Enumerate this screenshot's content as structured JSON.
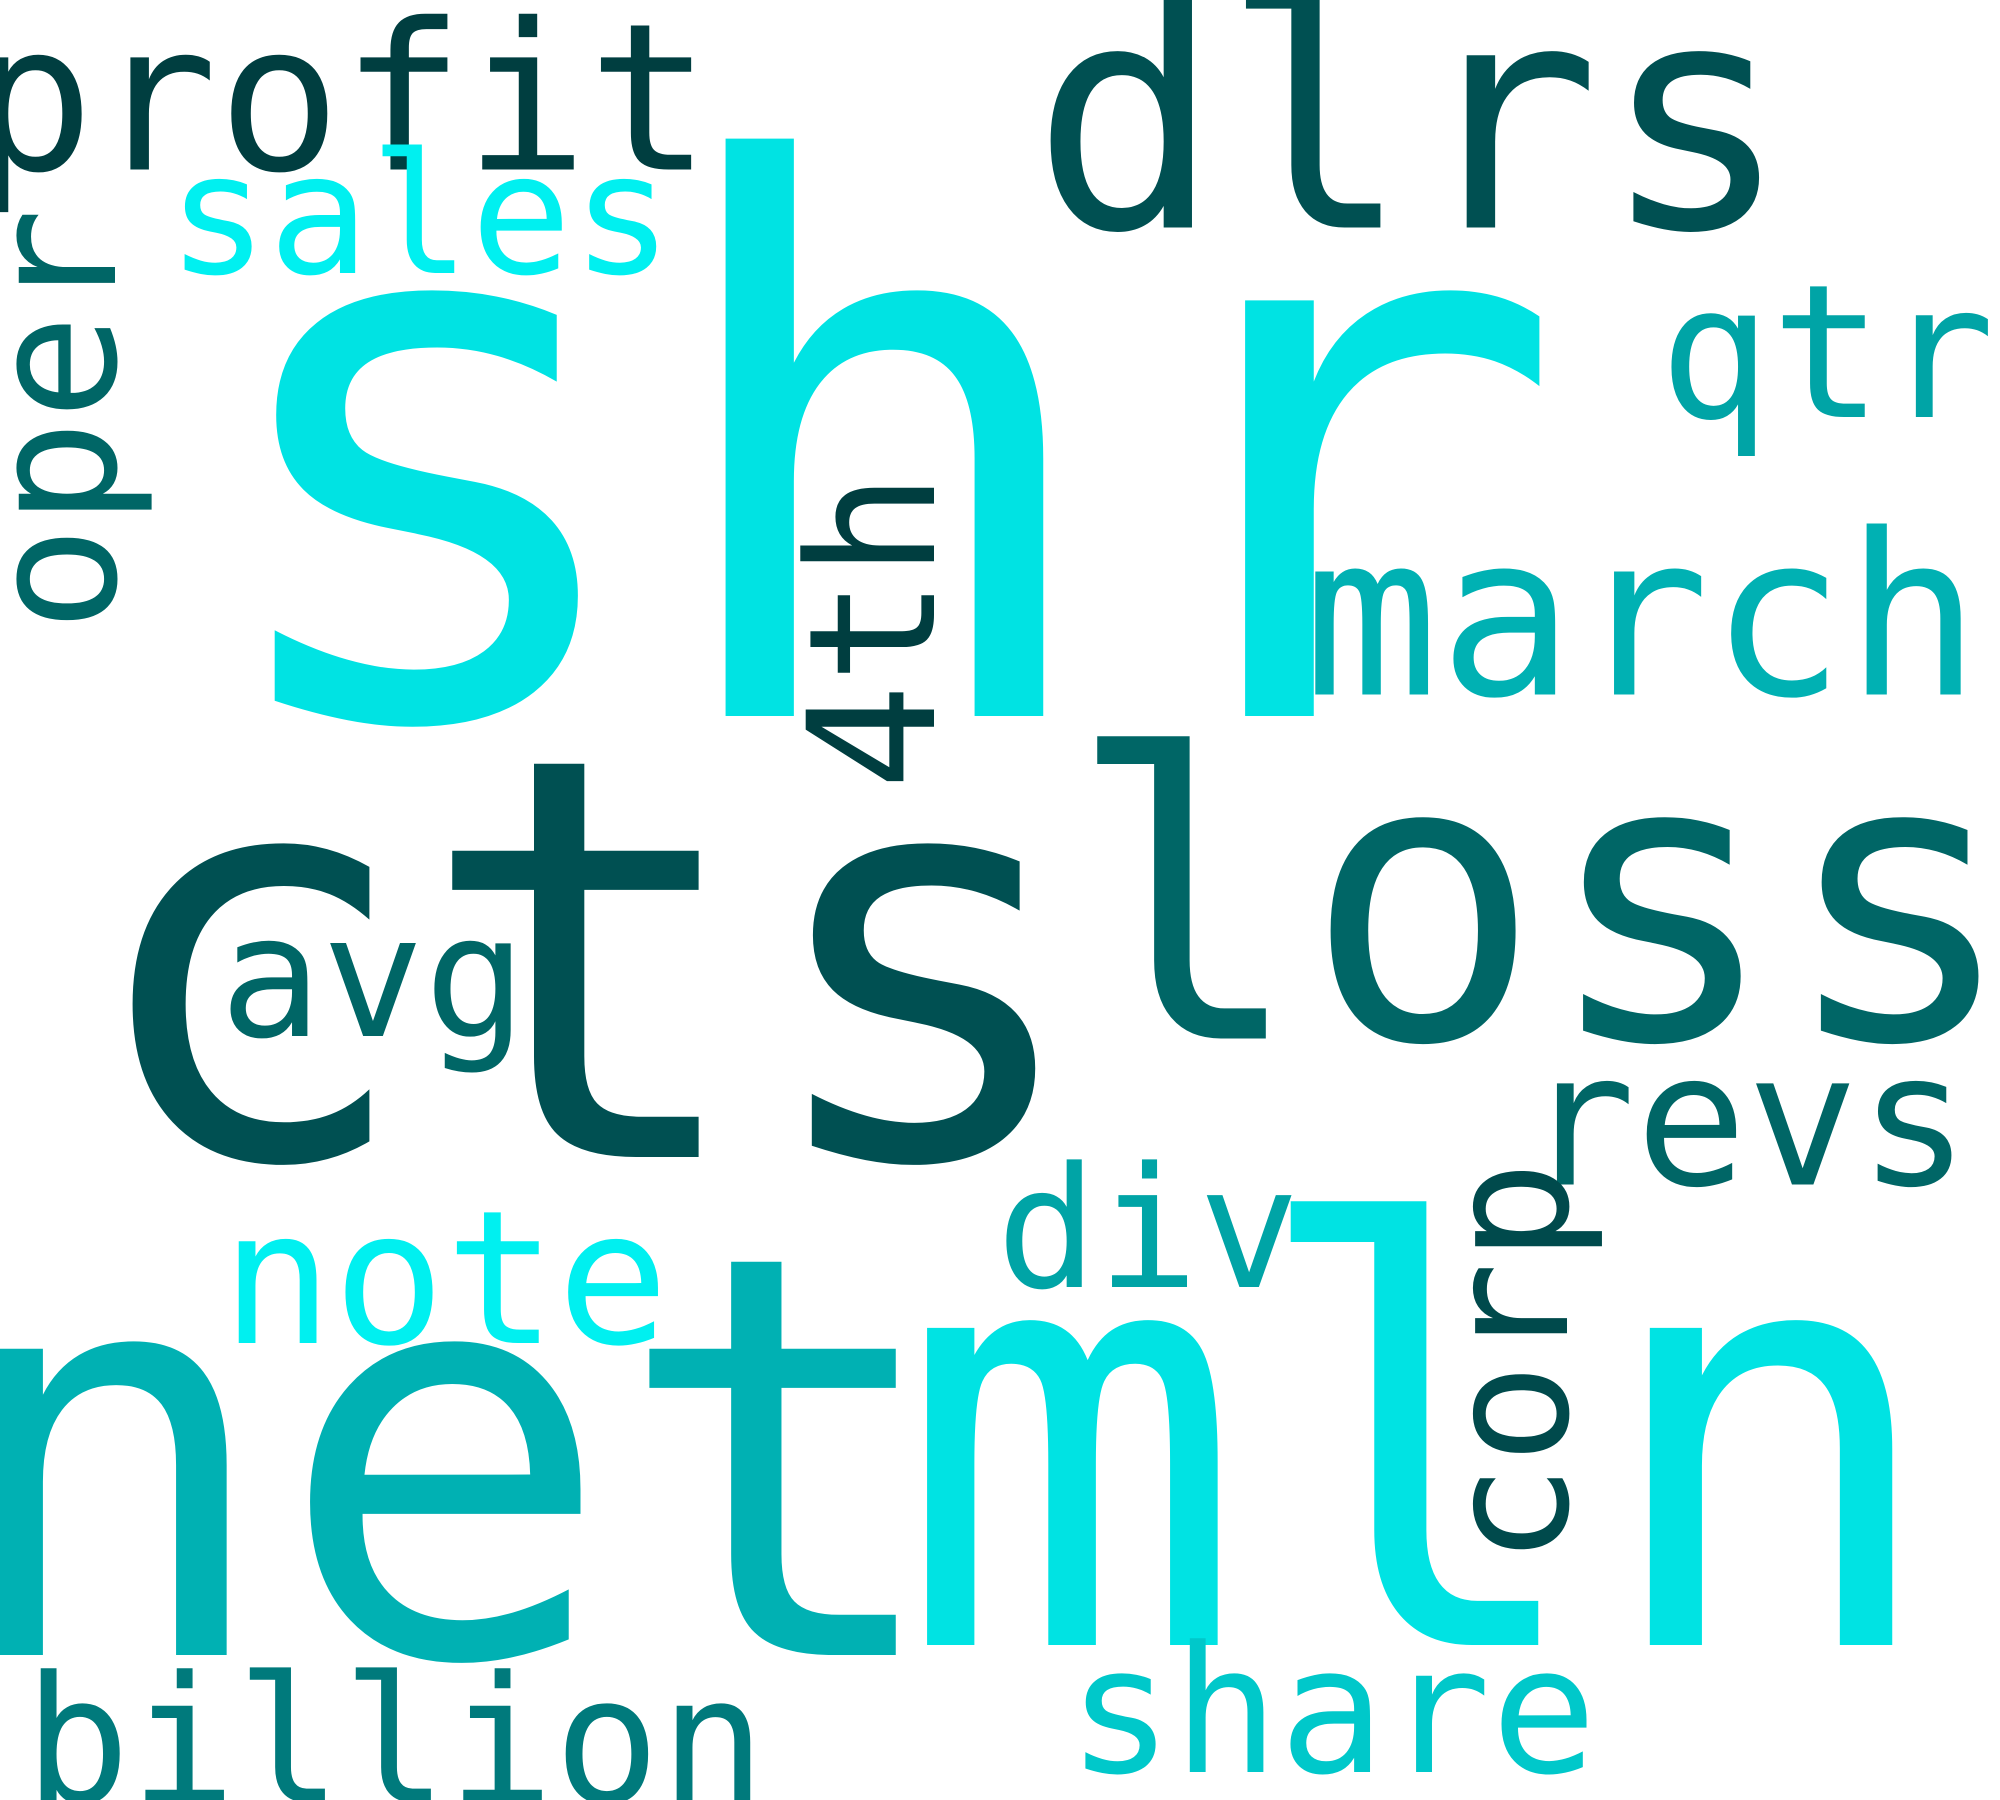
{
  "words": [
    {
      "id": "shr",
      "text": "shr",
      "color": "#00E3E3",
      "rotated": false
    },
    {
      "id": "cts",
      "text": "cts",
      "color": "#005052",
      "rotated": false
    },
    {
      "id": "net",
      "text": "net",
      "color": "#00B1B3",
      "rotated": false
    },
    {
      "id": "mln",
      "text": "mln",
      "color": "#00E3E3",
      "rotated": false
    },
    {
      "id": "loss",
      "text": "loss",
      "color": "#006666",
      "rotated": false
    },
    {
      "id": "dlrs",
      "text": "dlrs",
      "color": "#005052",
      "rotated": false
    },
    {
      "id": "march",
      "text": "march",
      "color": "#00B1B3",
      "rotated": false
    },
    {
      "id": "profit",
      "text": "profit",
      "color": "#003E40",
      "rotated": false
    },
    {
      "id": "sales",
      "text": "sales",
      "color": "#00F0F0",
      "rotated": false
    },
    {
      "id": "oper",
      "text": "oper",
      "color": "#006666",
      "rotated": true
    },
    {
      "id": "qtr",
      "text": "qtr",
      "color": "#00A4A6",
      "rotated": false
    },
    {
      "id": "4th",
      "text": "4th",
      "color": "#003E40",
      "rotated": true
    },
    {
      "id": "avg",
      "text": "avg",
      "color": "#006666",
      "rotated": false
    },
    {
      "id": "revs",
      "text": "revs",
      "color": "#006666",
      "rotated": false
    },
    {
      "id": "div",
      "text": "div",
      "color": "#00A4A6",
      "rotated": false
    },
    {
      "id": "note",
      "text": "note",
      "color": "#00F0F0",
      "rotated": false
    },
    {
      "id": "corp",
      "text": "corp",
      "color": "#004A4C",
      "rotated": true
    },
    {
      "id": "billion",
      "text": "billion",
      "color": "#007A7C",
      "rotated": false
    },
    {
      "id": "share",
      "text": "share",
      "color": "#00C8CA",
      "rotated": false
    }
  ]
}
